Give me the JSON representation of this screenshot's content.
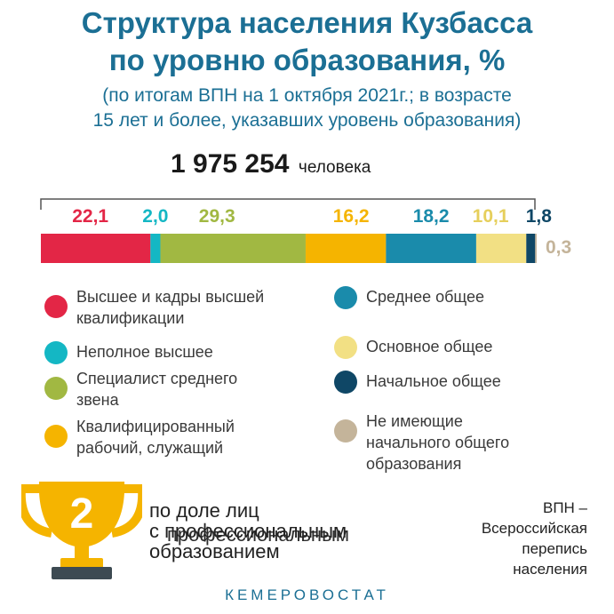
{
  "title_line1": "Структура населения Кузбасса",
  "title_line2": "по уровню образования, %",
  "subtitle_line1": "(по итогам ВПН на 1 октября 2021г.; в возрасте",
  "subtitle_line2": "15 лет и более, указавших уровень образования)",
  "total_value": "1 975 254",
  "total_unit": "человека",
  "chart_data": {
    "type": "bar",
    "orientation": "horizontal-stacked",
    "total": 100,
    "series": [
      {
        "name": "Высшее и кадры высшей квалификации",
        "value": 22.1,
        "label": "22,1",
        "color": "#e32646"
      },
      {
        "name": "Неполное высшее",
        "value": 2.0,
        "label": "2,0",
        "color": "#14b7c4"
      },
      {
        "name": "Специалист среднего звена",
        "value": 29.3,
        "label": "29,3",
        "color": "#a1b842"
      },
      {
        "name": "Квалифицированный рабочий, служащий",
        "value": 16.2,
        "label": "16,2",
        "color": "#f5b400"
      },
      {
        "name": "Среднее общее",
        "value": 18.2,
        "label": "18,2",
        "color": "#1a8bab"
      },
      {
        "name": "Основное общее",
        "value": 10.1,
        "label": "10,1",
        "color": "#f2e084"
      },
      {
        "name": "Начальное общее",
        "value": 1.8,
        "label": "1,8",
        "color": "#0f4766"
      },
      {
        "name": "Не имеющие начального общего образования",
        "value": 0.3,
        "label": "0,3",
        "color": "#c4b49a"
      }
    ]
  },
  "legend": {
    "left": [
      {
        "label": "Высшее и кадры высшей\nквалификации",
        "color": "#e32646"
      },
      {
        "label": "Неполное высшее",
        "color": "#14b7c4"
      },
      {
        "label": "Специалист среднего\nзвена",
        "color": "#a1b842"
      },
      {
        "label": "Квалифицированный\nрабочий, служащий",
        "color": "#f5b400"
      }
    ],
    "right": [
      {
        "label": "Среднее общее",
        "color": "#1a8bab"
      },
      {
        "label": "Основное общее",
        "color": "#f2e084"
      },
      {
        "label": "Начальное общее",
        "color": "#0f4766"
      },
      {
        "label": "Не имеющие\nначального общего\nобразования",
        "color": "#c4b49a"
      }
    ]
  },
  "rank": {
    "number": "2",
    "line1": "по доле лиц",
    "line2": "с профессиональным",
    "line2_ghost": "профессиональным",
    "line3": "образованием"
  },
  "note": {
    "line1": "ВПН –",
    "line2": "Всероссийская",
    "line3": "перепись",
    "line4": "населения"
  },
  "footer": "КЕМЕРОВОСТАТ"
}
